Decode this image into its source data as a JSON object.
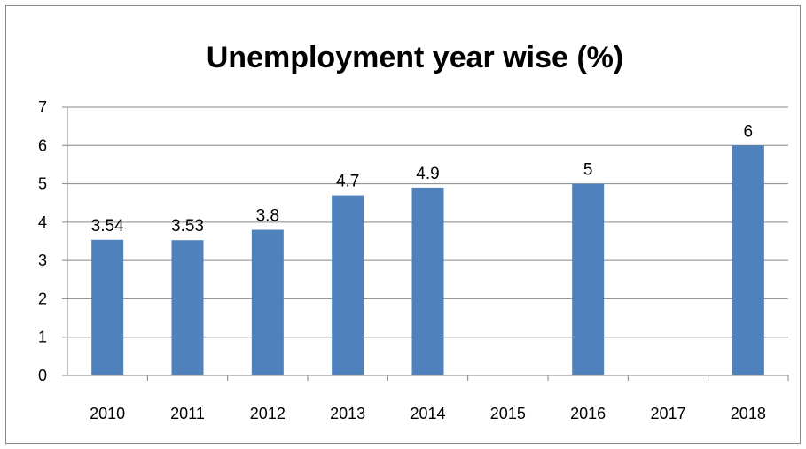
{
  "chart_data": {
    "type": "bar",
    "title": "Unemployment  year wise (%)",
    "categories": [
      "2010",
      "2011",
      "2012",
      "2013",
      "2014",
      "2015",
      "2016",
      "2017",
      "2018"
    ],
    "values": [
      3.54,
      3.53,
      3.8,
      4.7,
      4.9,
      null,
      5,
      null,
      6
    ],
    "data_labels": [
      "3.54",
      "3.53",
      "3.8",
      "4.7",
      "4.9",
      "",
      "5",
      "",
      "6"
    ],
    "ylim": [
      0,
      7
    ],
    "yticks": [
      "0",
      "1",
      "2",
      "3",
      "4",
      "5",
      "6",
      "7"
    ],
    "grid": true,
    "legend": "none",
    "bar_color": "#4F81BD",
    "grid_color": "#868686"
  }
}
